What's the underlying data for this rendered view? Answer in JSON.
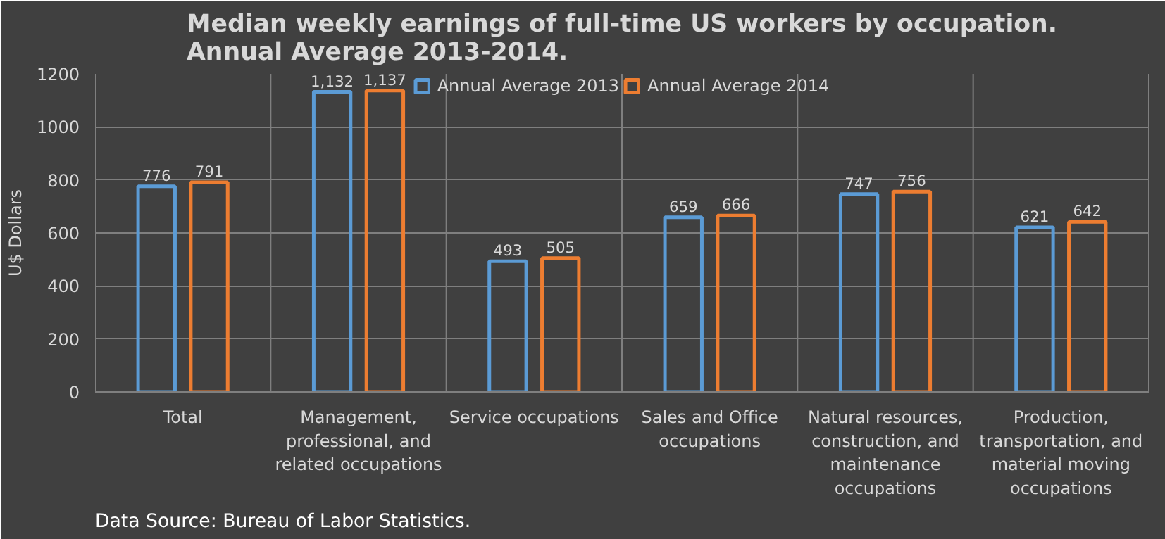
{
  "chart_data": {
    "type": "bar",
    "title": "Median weekly earnings of full-time US workers by occupation.\nAnnual Average 2013-2014.",
    "ylabel": "U$ Dollars",
    "categories": [
      "Total",
      "Management, professional, and related occupations",
      "Service occupations",
      "Sales and Office occupations",
      "Natural resources, construction, and maintenance occupations",
      "Production, transportation, and material moving occupations"
    ],
    "series": [
      {
        "name": "Annual Average 2013",
        "color": "#5b9bd5",
        "values": [
          776,
          1132,
          493,
          659,
          747,
          621
        ],
        "value_labels": [
          "776",
          "1,132",
          "493",
          "659",
          "747",
          "621"
        ]
      },
      {
        "name": "Annual Average 2014",
        "color": "#ed7d31",
        "values": [
          791,
          1137,
          505,
          666,
          756,
          642
        ],
        "value_labels": [
          "791",
          "1,137",
          "505",
          "666",
          "756",
          "642"
        ]
      }
    ],
    "ylim": [
      0,
      1200
    ],
    "yticks": [
      0,
      200,
      400,
      600,
      800,
      1000,
      1200
    ],
    "grid": true,
    "legend": "top",
    "annotations": [
      "Data Source: Bureau of Labor Statistics."
    ]
  }
}
